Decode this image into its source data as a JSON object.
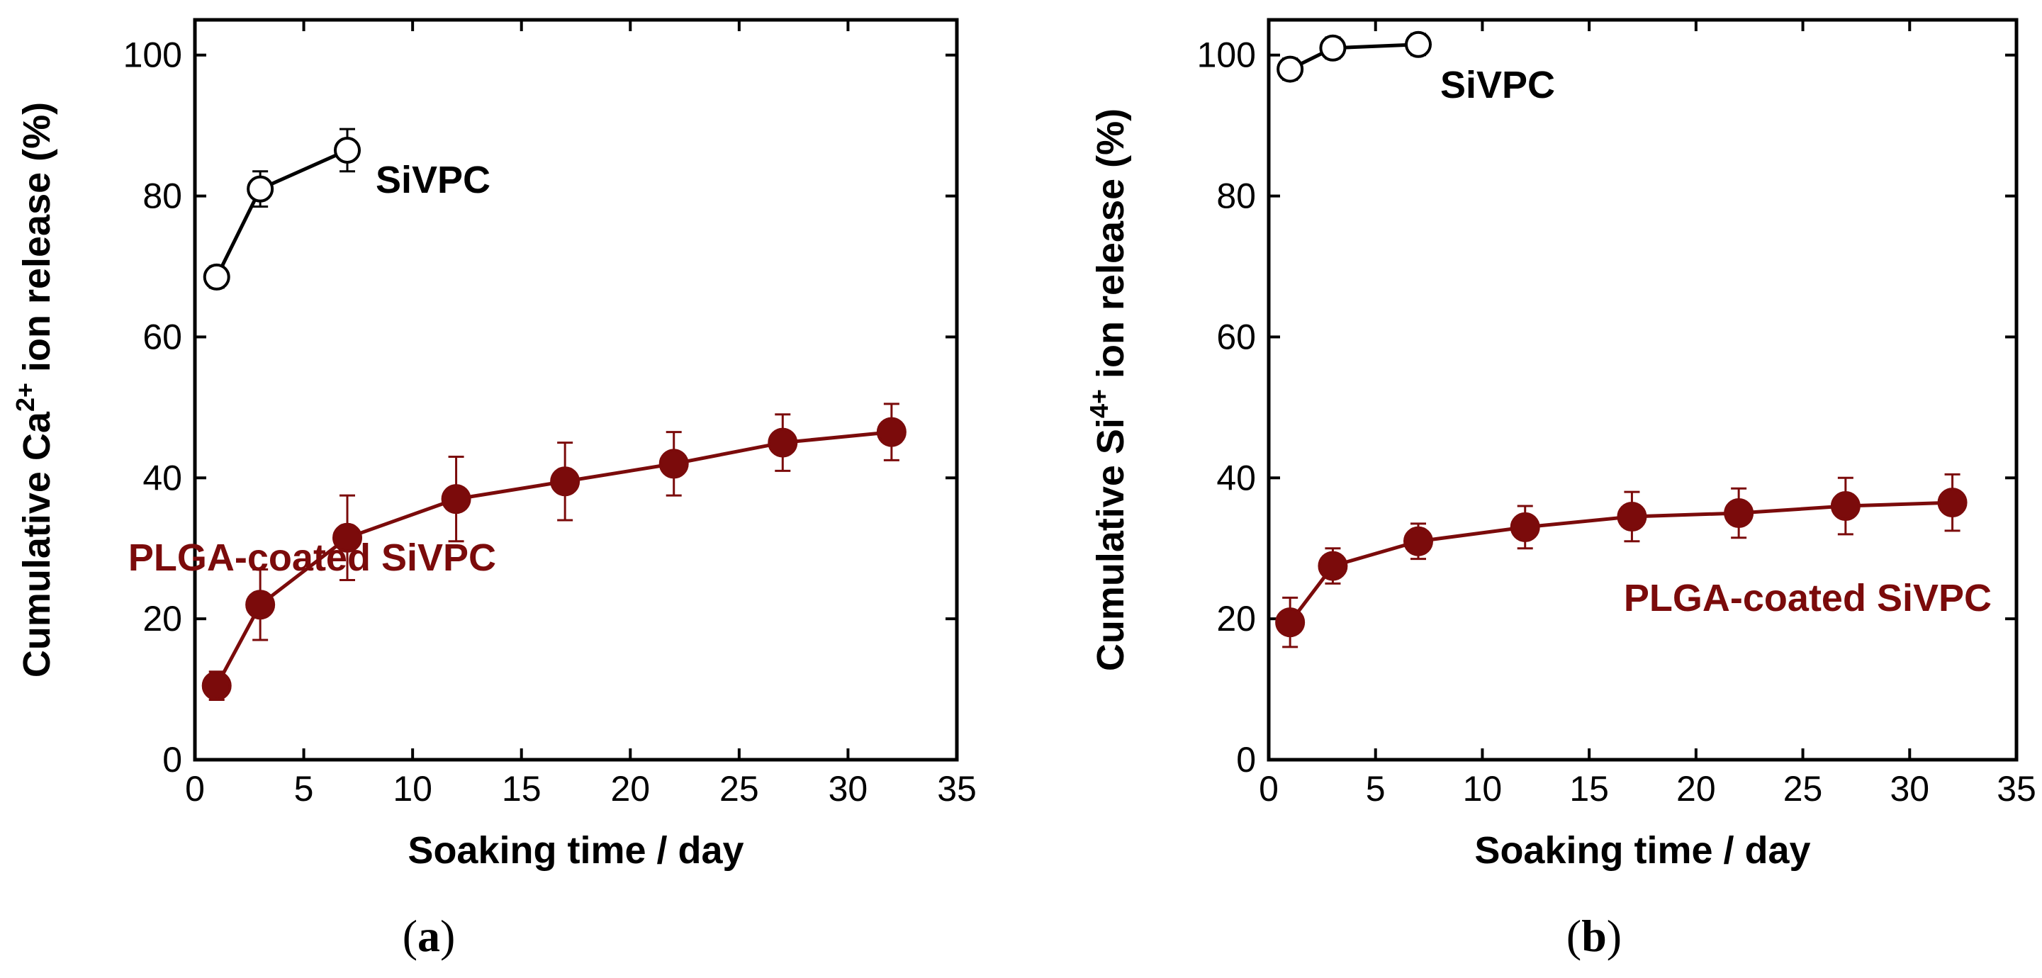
{
  "chart_data": [
    {
      "type": "line",
      "panel_label": "a",
      "xlabel": "Soaking time / day",
      "ylabel_main": "Cumulative Ca",
      "ylabel_superscript": "2+",
      "ylabel_tail": " ion release (%)",
      "xlim": [
        0,
        35
      ],
      "ylim": [
        0,
        105
      ],
      "xticks": [
        0,
        5,
        10,
        15,
        20,
        25,
        30,
        35
      ],
      "yticks": [
        0,
        20,
        40,
        60,
        80,
        100
      ],
      "series": [
        {
          "name": "SiVPC",
          "color": "#000000",
          "marker": "open-circle",
          "x": [
            1,
            3,
            7
          ],
          "y": [
            68.5,
            81,
            86.5
          ],
          "err": [
            1.5,
            2.5,
            3
          ]
        },
        {
          "name": "PLGA-coated SiVPC",
          "color": "#7b0b0b",
          "marker": "filled-circle",
          "x": [
            1,
            3,
            7,
            12,
            17,
            22,
            27,
            32
          ],
          "y": [
            10.5,
            22,
            31.5,
            37,
            39.5,
            42,
            45,
            46.5
          ],
          "err": [
            2,
            5,
            6,
            6,
            5.5,
            4.5,
            4,
            4
          ]
        }
      ]
    },
    {
      "type": "line",
      "panel_label": "b",
      "xlabel": "Soaking time / day",
      "ylabel_main": "Cumulative Si",
      "ylabel_superscript": "4+",
      "ylabel_tail": " ion release (%)",
      "xlim": [
        0,
        35
      ],
      "ylim": [
        0,
        105
      ],
      "xticks": [
        0,
        5,
        10,
        15,
        20,
        25,
        30,
        35
      ],
      "yticks": [
        0,
        20,
        40,
        60,
        80,
        100
      ],
      "series": [
        {
          "name": "SiVPC",
          "color": "#000000",
          "marker": "open-circle",
          "x": [
            1,
            3,
            7
          ],
          "y": [
            98,
            101,
            101.5
          ],
          "err": [
            1.5,
            1.5,
            1.5
          ]
        },
        {
          "name": "PLGA-coated SiVPC",
          "color": "#7b0b0b",
          "marker": "filled-circle",
          "x": [
            1,
            3,
            7,
            12,
            17,
            22,
            27,
            32
          ],
          "y": [
            19.5,
            27.5,
            31,
            33,
            34.5,
            35,
            36,
            36.5
          ],
          "err": [
            3.5,
            2.5,
            2.5,
            3,
            3.5,
            3.5,
            4,
            4
          ]
        }
      ]
    }
  ]
}
